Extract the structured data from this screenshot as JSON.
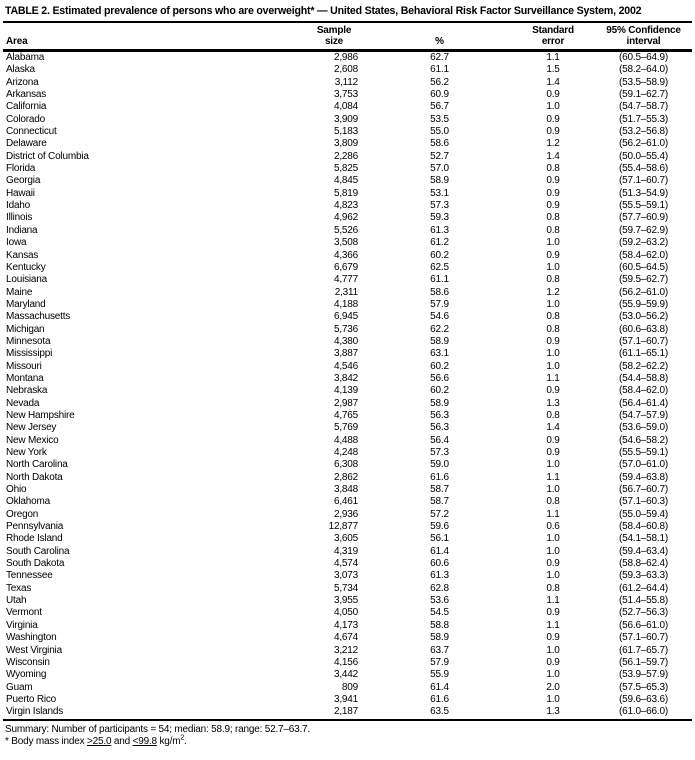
{
  "title": "TABLE 2. Estimated prevalence of persons who are overweight* — United States, Behavioral Risk Factor Surveillance System, 2002",
  "table": {
    "columns": {
      "area": "Area",
      "sample_size": {
        "line1": "Sample",
        "line2": "size"
      },
      "percent": "%",
      "standard_error": {
        "line1": "Standard",
        "line2": "error"
      },
      "confidence_interval": {
        "line1": "95% Confidence",
        "line2": "interval"
      }
    },
    "rows": [
      {
        "area": "Alabama",
        "sample_size": "2,986",
        "percent": "62.7",
        "standard_error": "1.1",
        "confidence_interval": "(60.5–64.9)"
      },
      {
        "area": "Alaska",
        "sample_size": "2,608",
        "percent": "61.1",
        "standard_error": "1.5",
        "confidence_interval": "(58.2–64.0)"
      },
      {
        "area": "Arizona",
        "sample_size": "3,112",
        "percent": "56.2",
        "standard_error": "1.4",
        "confidence_interval": "(53.5–58.9)"
      },
      {
        "area": "Arkansas",
        "sample_size": "3,753",
        "percent": "60.9",
        "standard_error": "0.9",
        "confidence_interval": "(59.1–62.7)"
      },
      {
        "area": "California",
        "sample_size": "4,084",
        "percent": "56.7",
        "standard_error": "1.0",
        "confidence_interval": "(54.7–58.7)"
      },
      {
        "area": "Colorado",
        "sample_size": "3,909",
        "percent": "53.5",
        "standard_error": "0.9",
        "confidence_interval": "(51.7–55.3)"
      },
      {
        "area": "Connecticut",
        "sample_size": "5,183",
        "percent": "55.0",
        "standard_error": "0.9",
        "confidence_interval": "(53.2–56.8)"
      },
      {
        "area": "Delaware",
        "sample_size": "3,809",
        "percent": "58.6",
        "standard_error": "1.2",
        "confidence_interval": "(56.2–61.0)"
      },
      {
        "area": "District of Columbia",
        "sample_size": "2,286",
        "percent": "52.7",
        "standard_error": "1.4",
        "confidence_interval": "(50.0–55.4)"
      },
      {
        "area": "Florida",
        "sample_size": "5,825",
        "percent": "57.0",
        "standard_error": "0.8",
        "confidence_interval": "(55.4–58.6)"
      },
      {
        "area": "Georgia",
        "sample_size": "4,845",
        "percent": "58.9",
        "standard_error": "0.9",
        "confidence_interval": "(57.1–60.7)"
      },
      {
        "area": "Hawaii",
        "sample_size": "5,819",
        "percent": "53.1",
        "standard_error": "0.9",
        "confidence_interval": "(51.3–54.9)"
      },
      {
        "area": "Idaho",
        "sample_size": "4,823",
        "percent": "57.3",
        "standard_error": "0.9",
        "confidence_interval": "(55.5–59.1)"
      },
      {
        "area": "Illinois",
        "sample_size": "4,962",
        "percent": "59.3",
        "standard_error": "0.8",
        "confidence_interval": "(57.7–60.9)"
      },
      {
        "area": "Indiana",
        "sample_size": "5,526",
        "percent": "61.3",
        "standard_error": "0.8",
        "confidence_interval": "(59.7–62.9)"
      },
      {
        "area": "Iowa",
        "sample_size": "3,508",
        "percent": "61.2",
        "standard_error": "1.0",
        "confidence_interval": "(59.2–63.2)"
      },
      {
        "area": "Kansas",
        "sample_size": "4,366",
        "percent": "60.2",
        "standard_error": "0.9",
        "confidence_interval": "(58.4–62.0)"
      },
      {
        "area": "Kentucky",
        "sample_size": "6,679",
        "percent": "62.5",
        "standard_error": "1.0",
        "confidence_interval": "(60.5–64.5)"
      },
      {
        "area": "Louisiana",
        "sample_size": "4,777",
        "percent": "61.1",
        "standard_error": "0.8",
        "confidence_interval": "(59.5–62.7)"
      },
      {
        "area": "Maine",
        "sample_size": "2,311",
        "percent": "58.6",
        "standard_error": "1.2",
        "confidence_interval": "(56.2–61.0)"
      },
      {
        "area": "Maryland",
        "sample_size": "4,188",
        "percent": "57.9",
        "standard_error": "1.0",
        "confidence_interval": "(55.9–59.9)"
      },
      {
        "area": "Massachusetts",
        "sample_size": "6,945",
        "percent": "54.6",
        "standard_error": "0.8",
        "confidence_interval": "(53.0–56.2)"
      },
      {
        "area": "Michigan",
        "sample_size": "5,736",
        "percent": "62.2",
        "standard_error": "0.8",
        "confidence_interval": "(60.6–63.8)"
      },
      {
        "area": "Minnesota",
        "sample_size": "4,380",
        "percent": "58.9",
        "standard_error": "0.9",
        "confidence_interval": "(57.1–60.7)"
      },
      {
        "area": "Mississippi",
        "sample_size": "3,887",
        "percent": "63.1",
        "standard_error": "1.0",
        "confidence_interval": "(61.1–65.1)"
      },
      {
        "area": "Missouri",
        "sample_size": "4,546",
        "percent": "60.2",
        "standard_error": "1.0",
        "confidence_interval": "(58.2–62.2)"
      },
      {
        "area": "Montana",
        "sample_size": "3,842",
        "percent": "56.6",
        "standard_error": "1.1",
        "confidence_interval": "(54.4–58.8)"
      },
      {
        "area": "Nebraska",
        "sample_size": "4,139",
        "percent": "60.2",
        "standard_error": "0.9",
        "confidence_interval": "(58.4–62.0)"
      },
      {
        "area": "Nevada",
        "sample_size": "2,987",
        "percent": "58.9",
        "standard_error": "1.3",
        "confidence_interval": "(56.4–61.4)"
      },
      {
        "area": "New Hampshire",
        "sample_size": "4,765",
        "percent": "56.3",
        "standard_error": "0.8",
        "confidence_interval": "(54.7–57.9)"
      },
      {
        "area": "New Jersey",
        "sample_size": "5,769",
        "percent": "56.3",
        "standard_error": "1.4",
        "confidence_interval": "(53.6–59.0)"
      },
      {
        "area": "New Mexico",
        "sample_size": "4,488",
        "percent": "56.4",
        "standard_error": "0.9",
        "confidence_interval": "(54.6–58.2)"
      },
      {
        "area": "New York",
        "sample_size": "4,248",
        "percent": "57.3",
        "standard_error": "0.9",
        "confidence_interval": "(55.5–59.1)"
      },
      {
        "area": "North Carolina",
        "sample_size": "6,308",
        "percent": "59.0",
        "standard_error": "1.0",
        "confidence_interval": "(57.0–61.0)"
      },
      {
        "area": "North Dakota",
        "sample_size": "2,862",
        "percent": "61.6",
        "standard_error": "1.1",
        "confidence_interval": "(59.4–63.8)"
      },
      {
        "area": "Ohio",
        "sample_size": "3,848",
        "percent": "58.7",
        "standard_error": "1.0",
        "confidence_interval": "(56.7–60.7)"
      },
      {
        "area": "Oklahoma",
        "sample_size": "6,461",
        "percent": "58.7",
        "standard_error": "0.8",
        "confidence_interval": "(57.1–60.3)"
      },
      {
        "area": "Oregon",
        "sample_size": "2,936",
        "percent": "57.2",
        "standard_error": "1.1",
        "confidence_interval": "(55.0–59.4)"
      },
      {
        "area": "Pennsylvania",
        "sample_size": "12,877",
        "percent": "59.6",
        "standard_error": "0.6",
        "confidence_interval": "(58.4–60.8)"
      },
      {
        "area": "Rhode Island",
        "sample_size": "3,605",
        "percent": "56.1",
        "standard_error": "1.0",
        "confidence_interval": "(54.1–58.1)"
      },
      {
        "area": "South Carolina",
        "sample_size": "4,319",
        "percent": "61.4",
        "standard_error": "1.0",
        "confidence_interval": "(59.4–63.4)"
      },
      {
        "area": "South Dakota",
        "sample_size": "4,574",
        "percent": "60.6",
        "standard_error": "0.9",
        "confidence_interval": "(58.8–62.4)"
      },
      {
        "area": "Tennessee",
        "sample_size": "3,073",
        "percent": "61.3",
        "standard_error": "1.0",
        "confidence_interval": "(59.3–63.3)"
      },
      {
        "area": "Texas",
        "sample_size": "5,734",
        "percent": "62.8",
        "standard_error": "0.8",
        "confidence_interval": "(61.2–64.4)"
      },
      {
        "area": "Utah",
        "sample_size": "3,955",
        "percent": "53.6",
        "standard_error": "1.1",
        "confidence_interval": "(51.4–55.8)"
      },
      {
        "area": "Vermont",
        "sample_size": "4,050",
        "percent": "54.5",
        "standard_error": "0.9",
        "confidence_interval": "(52.7–56.3)"
      },
      {
        "area": "Virginia",
        "sample_size": "4,173",
        "percent": "58.8",
        "standard_error": "1.1",
        "confidence_interval": "(56.6–61.0)"
      },
      {
        "area": "Washington",
        "sample_size": "4,674",
        "percent": "58.9",
        "standard_error": "0.9",
        "confidence_interval": "(57.1–60.7)"
      },
      {
        "area": "West Virginia",
        "sample_size": "3,212",
        "percent": "63.7",
        "standard_error": "1.0",
        "confidence_interval": "(61.7–65.7)"
      },
      {
        "area": "Wisconsin",
        "sample_size": "4,156",
        "percent": "57.9",
        "standard_error": "0.9",
        "confidence_interval": "(56.1–59.7)"
      },
      {
        "area": "Wyoming",
        "sample_size": "3,442",
        "percent": "55.9",
        "standard_error": "1.0",
        "confidence_interval": "(53.9–57.9)"
      },
      {
        "area": "Guam",
        "sample_size": "809",
        "percent": "61.4",
        "standard_error": "2.0",
        "confidence_interval": "(57.5–65.3)"
      },
      {
        "area": "Puerto Rico",
        "sample_size": "3,941",
        "percent": "61.6",
        "standard_error": "1.0",
        "confidence_interval": "(59.6–63.6)"
      },
      {
        "area": "Virgin Islands",
        "sample_size": "2,187",
        "percent": "63.5",
        "standard_error": "1.3",
        "confidence_interval": "(61.0–66.0)"
      }
    ]
  },
  "summary": "Summary: Number of participants = 54; median: 58.9; range: 52.7–63.7.",
  "footnote": {
    "part1": "* Body mass index ",
    "gte": ">25.0",
    "part2": " and ",
    "lte": "<99.8",
    "part3": " kg/m",
    "superscript": "2",
    "period": "."
  }
}
